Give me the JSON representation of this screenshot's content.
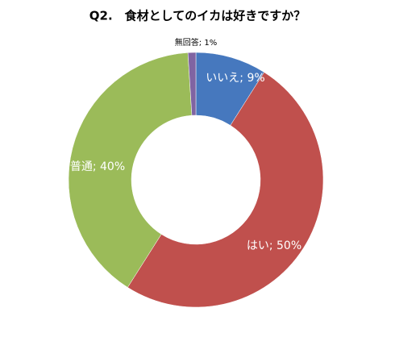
{
  "chart_data": {
    "type": "donut",
    "title": "Q2.　食材としてのイカは好きですか？",
    "values": [
      9,
      50,
      40,
      1
    ],
    "value_labels": [
      "いいえ; 9%",
      "はい; 50%",
      "普通; 40%",
      "無回答; 1%"
    ],
    "colors": [
      "#4678be",
      "#c0504d",
      "#9bbb59",
      "#8064a2"
    ]
  }
}
